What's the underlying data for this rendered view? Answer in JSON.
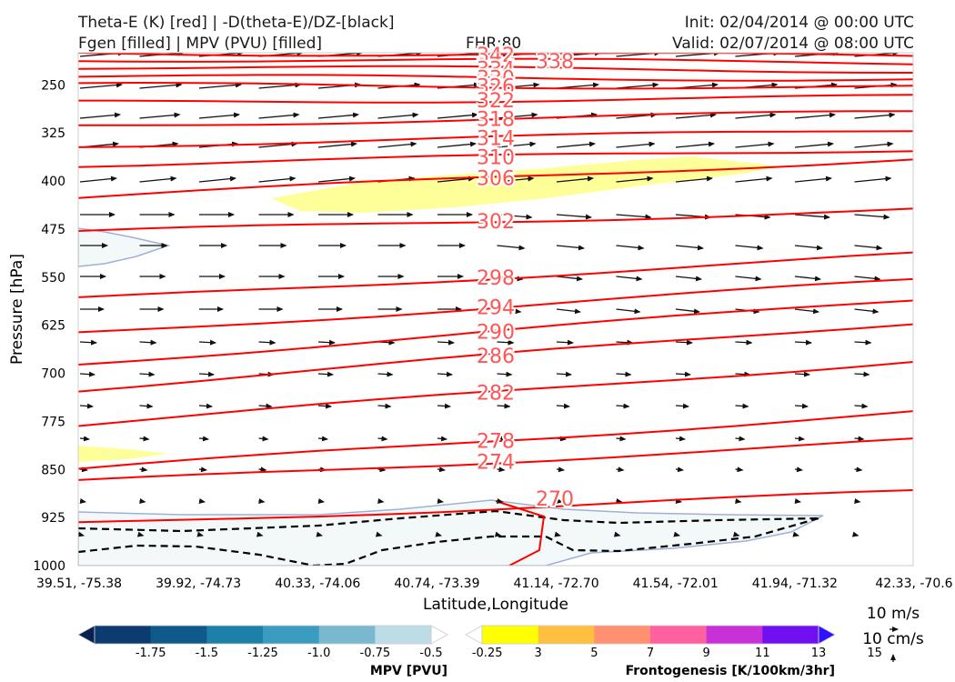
{
  "header": {
    "title_line1_left": "Theta-E (K) [red] | -D(theta-E)/DZ-[black]",
    "title_line2_left": "Fgen [filled] | MPV (PVU) [filled]",
    "fhr": "FHR:80",
    "init": "Init: 02/04/2014 @ 00:00 UTC",
    "valid": "Valid: 02/07/2014 @ 08:00 UTC"
  },
  "chart_data": {
    "type": "cross-section",
    "xlabel": "Latitude,Longitude",
    "ylabel": "Pressure [hPa]",
    "x_ticks": [
      "39.51, -75.38",
      "39.92, -74.73",
      "40.33, -74.06",
      "40.74, -73.39",
      "41.14, -72.70",
      "41.54, -72.01",
      "41.94, -71.32",
      "42.33, -70.6"
    ],
    "y_ticks": [
      250,
      325,
      400,
      475,
      550,
      625,
      700,
      775,
      850,
      925,
      1000
    ],
    "ylim": [
      1000,
      200
    ],
    "y_scale": "linear, inverted",
    "theta_e_contours": [
      {
        "label": "342",
        "p_left": 200,
        "p_right": 205
      },
      {
        "label": "338",
        "p_left": 210,
        "p_right": 215
      },
      {
        "label": "334",
        "p_left": 222,
        "p_right": 228
      },
      {
        "label": "330",
        "p_left": 237,
        "p_right": 241
      },
      {
        "label": "326",
        "p_left": 250,
        "p_right": 254
      },
      {
        "label": "322",
        "p_left": 278,
        "p_right": 269
      },
      {
        "label": "318",
        "p_left": 314,
        "p_right": 292
      },
      {
        "label": "314",
        "p_left": 345,
        "p_right": 320
      },
      {
        "label": "310",
        "p_left": 375,
        "p_right": 350
      },
      {
        "label": "306",
        "p_left": 425,
        "p_right": 365
      },
      {
        "label": "302",
        "p_left": 480,
        "p_right": 445
      },
      {
        "label": "298",
        "p_left": 585,
        "p_right": 515
      },
      {
        "label": "294",
        "p_left": 638,
        "p_right": 555
      },
      {
        "label": "290",
        "p_left": 685,
        "p_right": 585
      },
      {
        "label": "286",
        "p_left": 725,
        "p_right": 620
      },
      {
        "label": "282",
        "p_left": 780,
        "p_right": 680
      },
      {
        "label": "278",
        "p_left": 850,
        "p_right": 760
      },
      {
        "label": "274",
        "p_left": 870,
        "p_right": 805
      },
      {
        "label": "270",
        "p_left": 935,
        "p_right": 885
      }
    ],
    "mpv_colorbar": {
      "title": "MPV [PVU]",
      "labels": [
        "-1.75",
        "-1.5",
        "-1.25",
        "-1.0",
        "-0.75",
        "-0.5",
        "-0.25"
      ],
      "colors": [
        "#08214f",
        "#0b3b70",
        "#0f5a8a",
        "#1d80a8",
        "#3a9cc0",
        "#7ab8d0",
        "#bcdde6",
        "#ffffff"
      ]
    },
    "fgen_colorbar": {
      "title": "Frontogenesis [K/100km/3hr]",
      "labels": [
        "3",
        "5",
        "7",
        "9",
        "11",
        "13",
        "15"
      ],
      "colors": [
        "#ffffff",
        "#ffff00",
        "#ffc040",
        "#ff9070",
        "#ff60a0",
        "#c830d8",
        "#7010f0",
        "#3010ff"
      ]
    },
    "vector_keys": [
      "10 m/s",
      "10 cm/s"
    ],
    "colors": {
      "theta_e": "#ff0000",
      "theta_e_label": "#ff5555",
      "vectors": "#111111",
      "mpv_fill": "#f3f9f9",
      "mpv_edge": "#9fb0d8",
      "fgen_fill": "#ffff99"
    }
  }
}
